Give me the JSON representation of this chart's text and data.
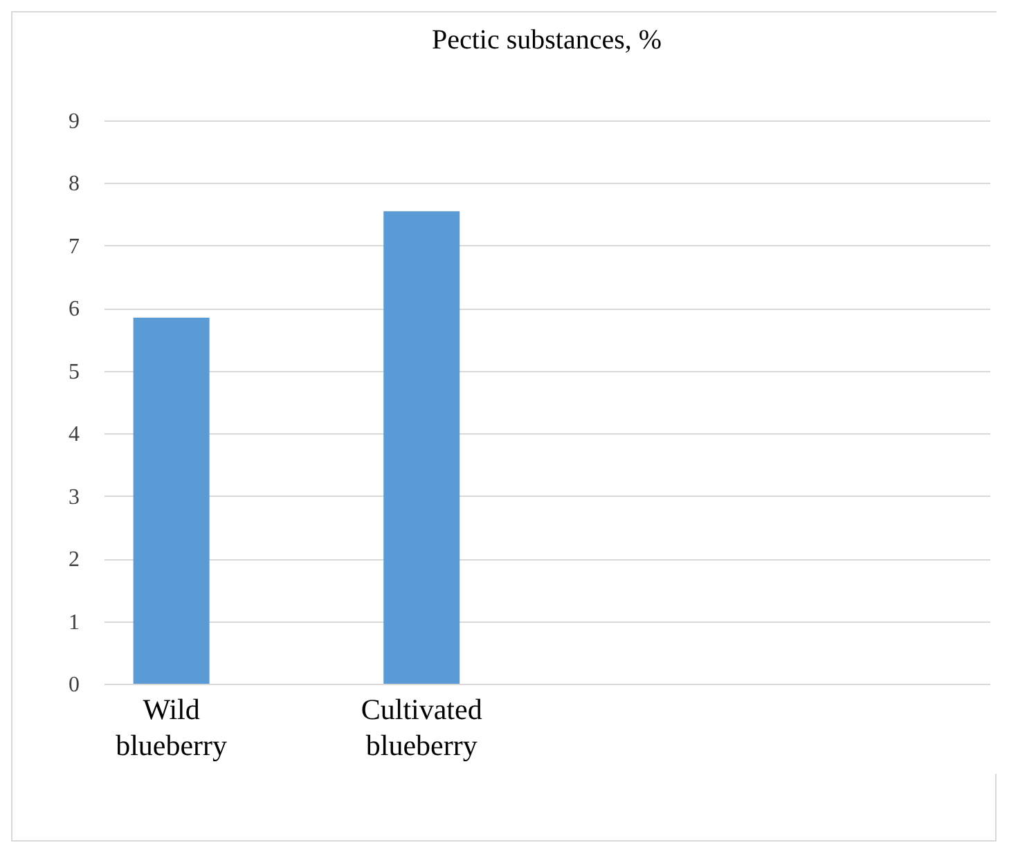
{
  "chart_data": {
    "type": "bar",
    "title": "Pectic substances, %",
    "categories": [
      "Wild blueberry",
      "Cultivated blueberry",
      null,
      null
    ],
    "values": [
      5.85,
      7.55,
      null,
      null
    ],
    "color": "#5b9bd5",
    "ylim": [
      0,
      9
    ],
    "yticks": [
      0,
      1,
      2,
      3,
      4,
      5,
      6,
      7,
      8,
      9
    ],
    "grid": "y"
  }
}
